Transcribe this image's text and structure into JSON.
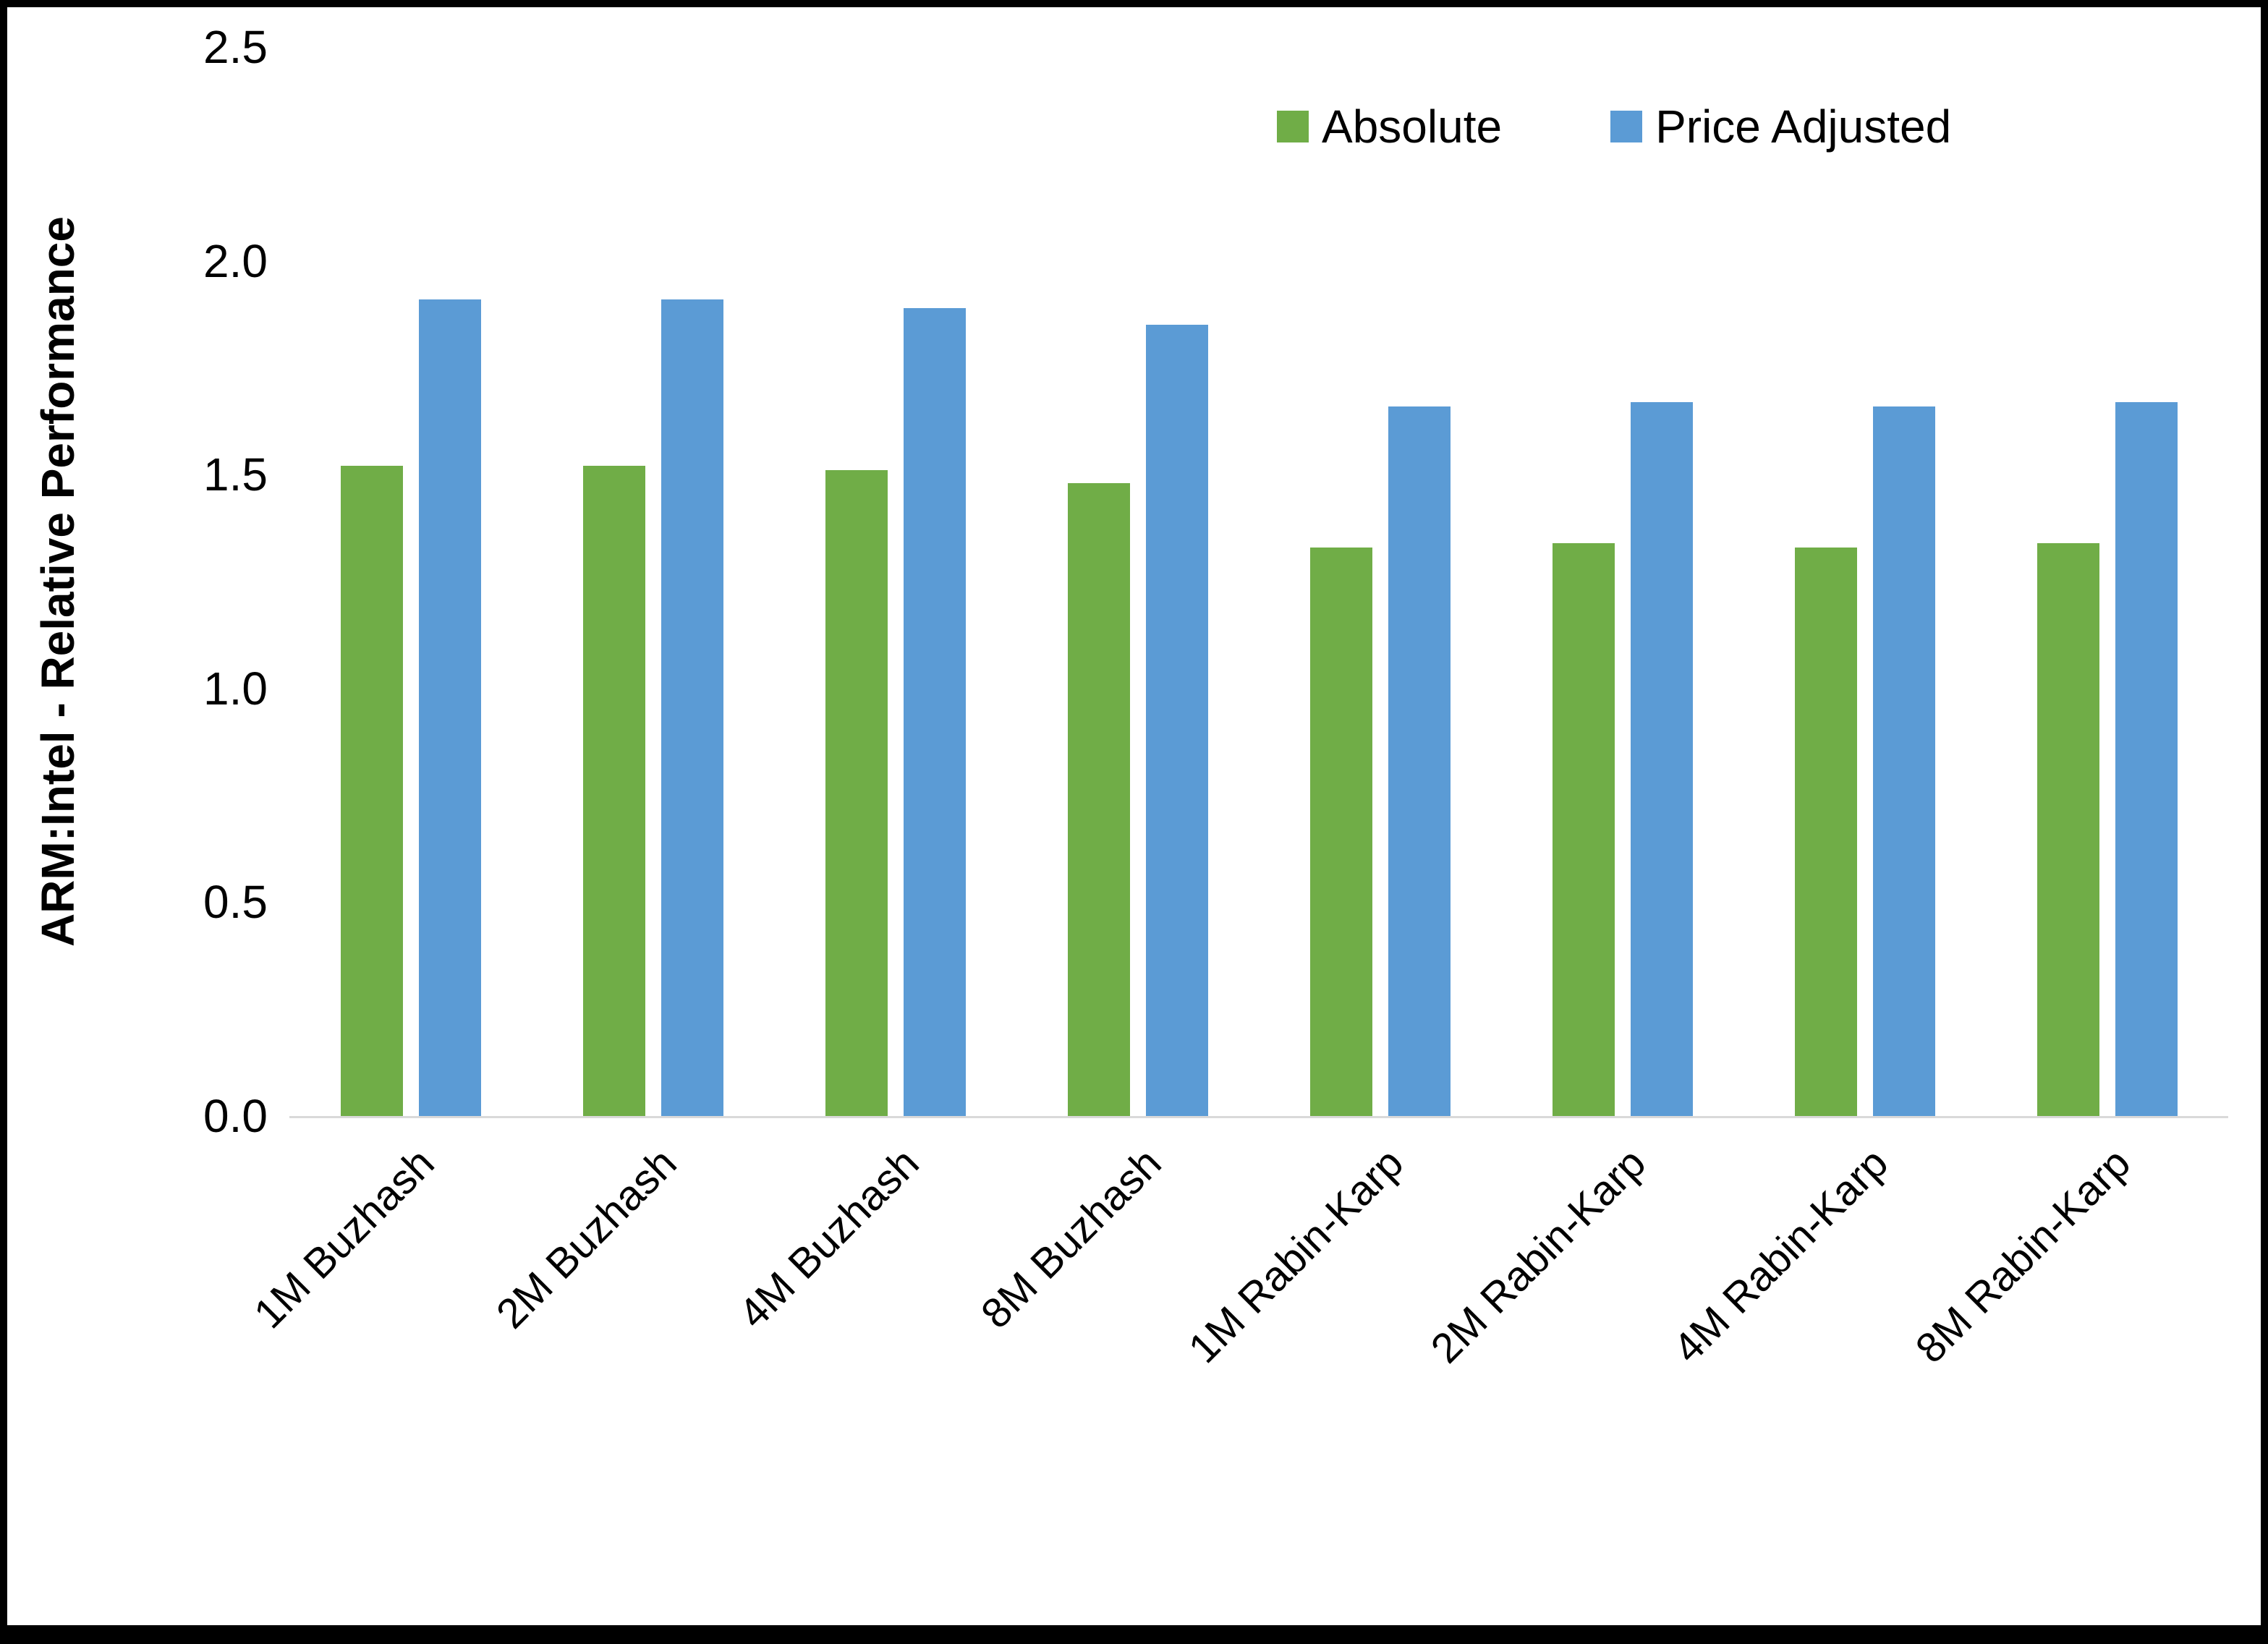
{
  "chart_data": {
    "type": "bar",
    "title": "",
    "xlabel": "",
    "ylabel": "ARM:Intel - Relative Performance",
    "ylim": [
      0,
      2.5
    ],
    "yticks": [
      0.0,
      0.5,
      1.0,
      1.5,
      2.0,
      2.5
    ],
    "grid": false,
    "legend_position": "top",
    "categories": [
      "1M Buzhash",
      "2M Buzhash",
      "4M Buzhash",
      "8M Buzhash",
      "1M Rabin-Karp",
      "2M Rabin-Karp",
      "4M Rabin-Karp",
      "8M Rabin-Karp"
    ],
    "series": [
      {
        "name": "Absolute",
        "color": "#70AD47",
        "values": [
          1.52,
          1.52,
          1.51,
          1.48,
          1.33,
          1.34,
          1.33,
          1.34
        ]
      },
      {
        "name": "Price Adjusted",
        "color": "#5B9BD5",
        "values": [
          1.91,
          1.91,
          1.89,
          1.85,
          1.66,
          1.67,
          1.66,
          1.67
        ]
      }
    ]
  }
}
